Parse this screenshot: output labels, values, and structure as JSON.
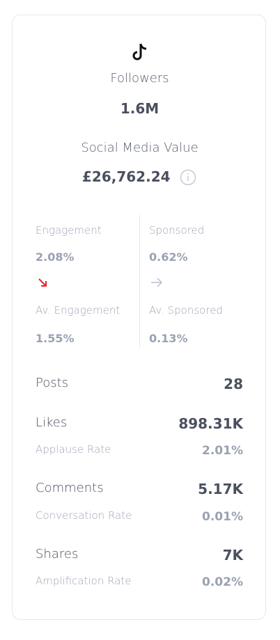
{
  "profile": {
    "followers_label": "Followers",
    "followers": "1.6M",
    "smv_label": "Social Media Value",
    "smv": "£26,762.24"
  },
  "metrics": [
    {
      "label": "Engagement",
      "value": "2.08%"
    },
    {
      "label": "Sponsored",
      "value": "0.62%"
    },
    {
      "label": "Av. Engagement",
      "value": "1.55%"
    },
    {
      "label": "Av. Sponsored",
      "value": "0.13%"
    }
  ],
  "stats": [
    {
      "label": "Posts",
      "value": "28"
    },
    {
      "label": "Likes",
      "value": "898.31K",
      "sub_label": "Applause Rate",
      "sub_value": "2.01%"
    },
    {
      "label": "Comments",
      "value": "5.17K",
      "sub_label": "Conversation Rate",
      "sub_value": "0.01%"
    },
    {
      "label": "Shares",
      "value": "7K",
      "sub_label": "Amplification Rate",
      "sub_value": "0.02%"
    }
  ]
}
